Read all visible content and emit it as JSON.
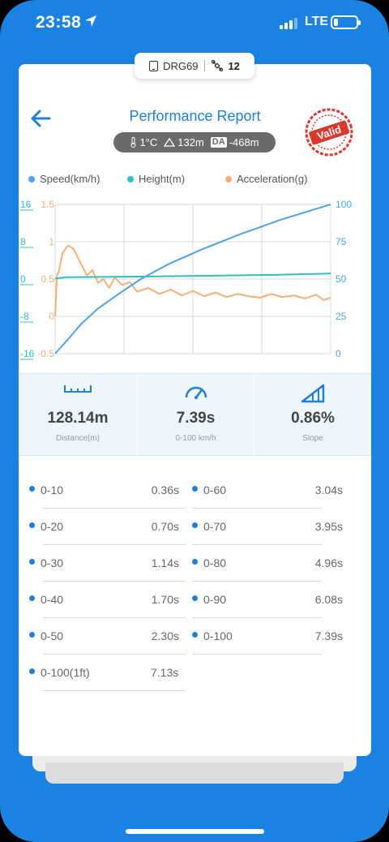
{
  "status_bar": {
    "time": "23:58",
    "network": "LTE"
  },
  "device_tag": {
    "name": "DRG69",
    "satellites": "12"
  },
  "header": {
    "title": "Performance Report",
    "stamp_text": "Valid"
  },
  "weather": {
    "temperature": "1°C",
    "altitude": "132m",
    "da_label": "DA",
    "density_altitude": "-468m"
  },
  "legend": [
    {
      "label": "Speed(km/h)",
      "color": "#4da3e6"
    },
    {
      "label": "Height(m)",
      "color": "#2ec0c0"
    },
    {
      "label": "Acceleration(g)",
      "color": "#f5b07a"
    }
  ],
  "chart_data": {
    "type": "line",
    "series": [
      {
        "name": "Speed(km/h)",
        "color": "#4da3e6",
        "axis": "right",
        "x": [
          0,
          0.36,
          0.7,
          1.14,
          1.7,
          2.3,
          3.04,
          3.95,
          4.96,
          6.08,
          7.39
        ],
        "values": [
          0,
          10,
          20,
          30,
          40,
          50,
          60,
          70,
          80,
          90,
          100
        ]
      },
      {
        "name": "Height(m)",
        "color": "#2ec0c0",
        "axis": "left-height",
        "x": [
          0,
          0.3,
          2,
          4,
          6,
          7.39
        ],
        "values": [
          0.1,
          0.4,
          0.5,
          0.7,
          0.9,
          1.2
        ]
      },
      {
        "name": "Acceleration(g)",
        "color": "#f5b07a",
        "axis": "left-acceleration",
        "x": [
          0,
          0.05,
          0.1,
          0.2,
          0.35,
          0.5,
          0.7,
          0.85,
          1.0,
          1.15,
          1.3,
          1.45,
          1.6,
          1.8,
          2.0,
          2.2,
          2.5,
          2.8,
          3.1,
          3.4,
          3.7,
          4.0,
          4.3,
          4.6,
          4.9,
          5.2,
          5.5,
          5.8,
          6.1,
          6.4,
          6.7,
          7.0,
          7.2,
          7.39
        ],
        "values": [
          0,
          0.55,
          0.6,
          0.85,
          0.95,
          0.9,
          0.7,
          0.55,
          0.62,
          0.45,
          0.5,
          0.38,
          0.52,
          0.42,
          0.46,
          0.33,
          0.38,
          0.3,
          0.36,
          0.28,
          0.34,
          0.27,
          0.32,
          0.26,
          0.3,
          0.27,
          0.25,
          0.3,
          0.26,
          0.28,
          0.24,
          0.29,
          0.22,
          0.25
        ]
      }
    ],
    "xlim": [
      0,
      7.39
    ],
    "left_axis_height": {
      "ticks": [
        "16",
        "8",
        "0",
        "-8",
        "-16"
      ],
      "color": "#2ec0c0",
      "ylim": [
        -16,
        16
      ]
    },
    "left_axis_acceleration": {
      "ticks": [
        "1.5",
        "1",
        "0.5",
        "0",
        "-0.5"
      ],
      "color": "#f5b07a",
      "ylim": [
        -0.5,
        1.5
      ]
    },
    "right_axis_speed": {
      "ticks": [
        "100",
        "75",
        "50",
        "25",
        "0"
      ],
      "color": "#4da3e6",
      "ylim": [
        0,
        100
      ]
    },
    "grid": true
  },
  "stats": [
    {
      "value": "128.14m",
      "label": "Distance(m)",
      "icon": "ruler-icon"
    },
    {
      "value": "7.39s",
      "label": "0-100 km/h",
      "icon": "speedometer-icon"
    },
    {
      "value": "0.86%",
      "label": "Slope",
      "icon": "slope-icon"
    }
  ],
  "splits_left": [
    {
      "range": "0-10",
      "time": "0.36s"
    },
    {
      "range": "0-20",
      "time": "0.70s"
    },
    {
      "range": "0-30",
      "time": "1.14s"
    },
    {
      "range": "0-40",
      "time": "1.70s"
    },
    {
      "range": "0-50",
      "time": "2.30s"
    },
    {
      "range": "0-100(1ft)",
      "time": "7.13s"
    }
  ],
  "splits_right": [
    {
      "range": "0-60",
      "time": "3.04s"
    },
    {
      "range": "0-70",
      "time": "3.95s"
    },
    {
      "range": "0-80",
      "time": "4.96s"
    },
    {
      "range": "0-90",
      "time": "6.08s"
    },
    {
      "range": "0-100",
      "time": "7.39s"
    }
  ]
}
